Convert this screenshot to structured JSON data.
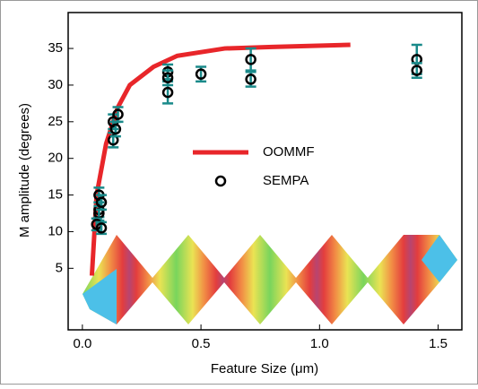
{
  "chart_data": {
    "type": "scatter-line",
    "x_label": "Feature Size (μm)",
    "y_label": "M amplitude (degrees)",
    "xlim": [
      -0.06,
      1.6
    ],
    "ylim": [
      -3.4,
      39.9
    ],
    "xticks": [
      {
        "value": 0,
        "label": "0.0"
      },
      0.5,
      {
        "value": 1,
        "label": "1.0"
      },
      1.5
    ],
    "yticks": [
      5,
      10,
      15,
      20,
      25,
      30,
      35
    ],
    "legend": "center",
    "series": [
      {
        "name": "OOMMF",
        "kind": "line",
        "color": "#e8262a",
        "x": [
          0.04,
          0.06,
          0.1,
          0.15,
          0.2,
          0.3,
          0.4,
          0.6,
          0.8,
          1.13
        ],
        "values": [
          4,
          15,
          22,
          27,
          30,
          32.5,
          34,
          35,
          35.2,
          35.5
        ]
      },
      {
        "name": "SEMPA",
        "kind": "scatter",
        "color": "#000000",
        "error_color": "#1a8a8a",
        "x": [
          0.07,
          0.07,
          0.07,
          0.06,
          0.08,
          0.08,
          0.13,
          0.13,
          0.15,
          0.14,
          0.36,
          0.36,
          0.36,
          0.5,
          0.71,
          0.71,
          1.41,
          1.41
        ],
        "values": [
          15,
          13,
          12.5,
          11,
          10.5,
          14,
          25,
          22.5,
          26,
          24,
          31.8,
          29,
          31,
          31.5,
          33.5,
          30.8,
          33.5,
          32
        ],
        "errors": [
          1,
          1,
          1,
          0.8,
          0.8,
          1,
          1,
          1,
          1,
          1,
          1,
          1.5,
          1,
          1,
          1.5,
          1,
          2,
          1
        ]
      }
    ]
  }
}
